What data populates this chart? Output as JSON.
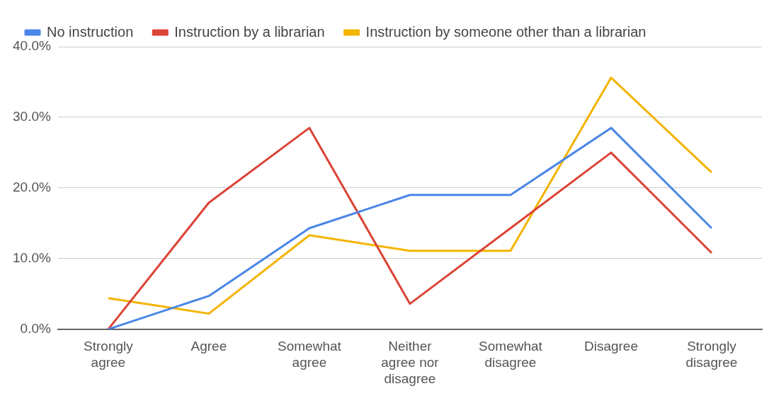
{
  "chart_data": {
    "type": "line",
    "categories": [
      "Strongly agree",
      "Agree",
      "Somewhat agree",
      "Neither agree nor disagree",
      "Somewhat disagree",
      "Disagree",
      "Strongly disagree"
    ],
    "series": [
      {
        "name": "No instruction",
        "color": "#4a86e8",
        "values": [
          0,
          4.7,
          14.3,
          19.0,
          19.0,
          28.5,
          14.3
        ]
      },
      {
        "name": "Instruction by a librarian",
        "color": "#db4437",
        "values": [
          0,
          17.9,
          28.5,
          3.6,
          14.3,
          25.0,
          10.8
        ]
      },
      {
        "name": "Instruction by someone other than a librarian",
        "color": "#f4b400",
        "values": [
          4.4,
          2.2,
          13.3,
          11.1,
          11.1,
          35.6,
          22.2
        ]
      }
    ],
    "ylim": [
      0,
      40
    ],
    "yticks": [
      {
        "value": 0,
        "label": "0.0%"
      },
      {
        "value": 10,
        "label": "10.0%"
      },
      {
        "value": 20,
        "label": "20.0%"
      },
      {
        "value": 30,
        "label": "30.0%"
      },
      {
        "value": 40,
        "label": "40.0%"
      }
    ],
    "grid": "y",
    "legend": "top left",
    "marker": "none",
    "line_style": "solid"
  }
}
